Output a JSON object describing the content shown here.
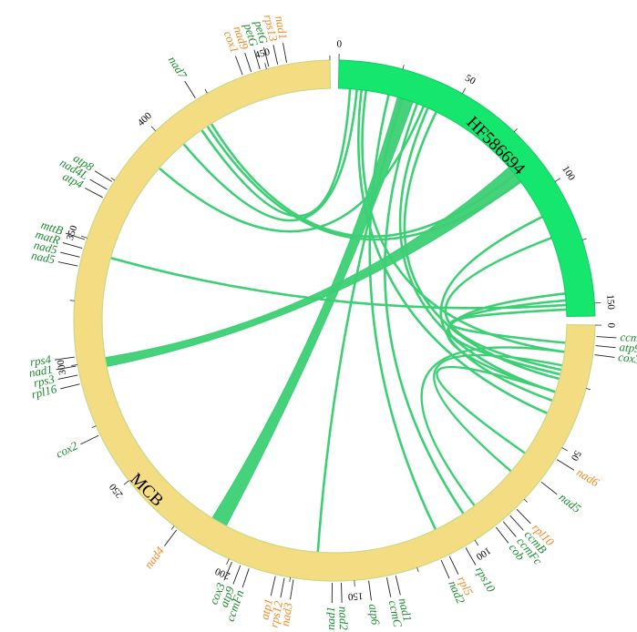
{
  "colors": {
    "mcb_fill": "#f3dc82",
    "mcb_stroke": "#c9d98a",
    "hf_fill": "#14e66e",
    "hf_stroke": "#11cc60",
    "link": "#3ccf74",
    "gene_green": "#1a8a2e",
    "gene_orange": "#f08a24"
  },
  "segments": [
    {
      "id": "HF586694",
      "label": "HF586694",
      "ticks": [
        "0",
        "50",
        "100",
        "150"
      ],
      "labeled_tick_values": [
        0,
        50,
        100,
        150
      ],
      "length": 155
    },
    {
      "id": "MCB",
      "label": "MCB",
      "ticks": [
        "0",
        "50",
        "100",
        "150",
        "200",
        "250",
        "300",
        "350",
        "400",
        "450"
      ],
      "labeled_tick_values": [
        0,
        50,
        100,
        150,
        200,
        250,
        300,
        350,
        400,
        450
      ],
      "length": 475
    }
  ],
  "gene_labels": [
    {
      "text": "nad1",
      "color": "orange"
    },
    {
      "text": "rps13",
      "color": "orange"
    },
    {
      "text": "petG",
      "color": "green"
    },
    {
      "text": "petG",
      "color": "green"
    },
    {
      "text": "nad9",
      "color": "orange"
    },
    {
      "text": "cox1",
      "color": "orange"
    },
    {
      "text": "nad7",
      "color": "green"
    },
    {
      "text": "atp8",
      "color": "green"
    },
    {
      "text": "nad4L",
      "color": "green"
    },
    {
      "text": "atp4",
      "color": "green"
    },
    {
      "text": "mttB",
      "color": "green"
    },
    {
      "text": "matR",
      "color": "green"
    },
    {
      "text": "nad5",
      "color": "green"
    },
    {
      "text": "nad5",
      "color": "green"
    },
    {
      "text": "rps4",
      "color": "green"
    },
    {
      "text": "nad1",
      "color": "green"
    },
    {
      "text": "rps3",
      "color": "green"
    },
    {
      "text": "rpl16",
      "color": "green"
    },
    {
      "text": "cox2",
      "color": "green"
    },
    {
      "text": "nad4",
      "color": "orange"
    },
    {
      "text": "cox3",
      "color": "green"
    },
    {
      "text": "atp9",
      "color": "green"
    },
    {
      "text": "ccmFn",
      "color": "green"
    },
    {
      "text": "atp1",
      "color": "orange"
    },
    {
      "text": "rps12",
      "color": "orange"
    },
    {
      "text": "nad3",
      "color": "orange"
    },
    {
      "text": "nad1",
      "color": "green"
    },
    {
      "text": "nad2",
      "color": "green"
    },
    {
      "text": "atp6",
      "color": "green"
    },
    {
      "text": "ccmC",
      "color": "green"
    },
    {
      "text": "nad1",
      "color": "green"
    },
    {
      "text": "nad2",
      "color": "green"
    },
    {
      "text": "rpl5",
      "color": "orange"
    },
    {
      "text": "rps10",
      "color": "green"
    },
    {
      "text": "cob",
      "color": "green"
    },
    {
      "text": "ccmFc",
      "color": "green"
    },
    {
      "text": "ccmB",
      "color": "green"
    },
    {
      "text": "rpl10",
      "color": "orange"
    },
    {
      "text": "nad5",
      "color": "green"
    },
    {
      "text": "nad6",
      "color": "orange"
    },
    {
      "text": "cox3",
      "color": "green"
    },
    {
      "text": "atp9",
      "color": "green"
    },
    {
      "text": "ccmFn",
      "color": "green"
    }
  ]
}
